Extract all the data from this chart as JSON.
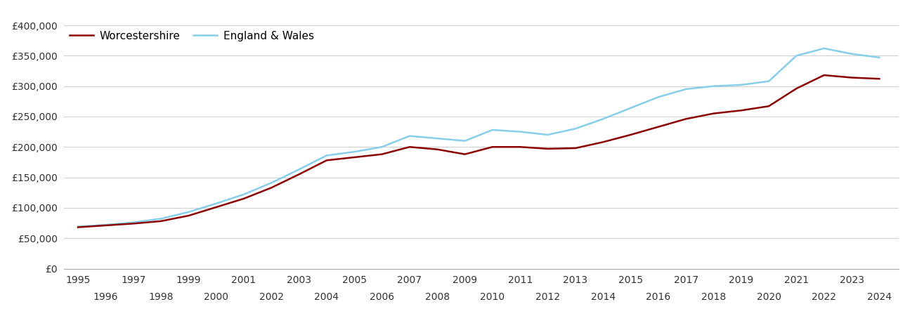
{
  "years": [
    1995,
    1996,
    1997,
    1998,
    1999,
    2000,
    2001,
    2002,
    2003,
    2004,
    2005,
    2006,
    2007,
    2008,
    2009,
    2010,
    2011,
    2012,
    2013,
    2014,
    2015,
    2016,
    2017,
    2018,
    2019,
    2020,
    2021,
    2022,
    2023,
    2024
  ],
  "worcestershire": [
    68000,
    71000,
    74000,
    78000,
    87000,
    101000,
    115000,
    133000,
    155000,
    178000,
    183000,
    188000,
    200000,
    196000,
    188000,
    200000,
    200000,
    197000,
    198000,
    208000,
    220000,
    233000,
    246000,
    255000,
    260000,
    267000,
    296000,
    318000,
    314000,
    312000
  ],
  "england_wales": [
    69000,
    72000,
    76000,
    82000,
    93000,
    107000,
    122000,
    141000,
    163000,
    186000,
    192000,
    200000,
    218000,
    214000,
    210000,
    228000,
    225000,
    220000,
    230000,
    246000,
    264000,
    282000,
    295000,
    300000,
    302000,
    308000,
    350000,
    362000,
    353000,
    347000
  ],
  "worcs_color": "#8B0000",
  "ew_color": "#87CEEB",
  "background_color": "#ffffff",
  "grid_color": "#d0d0d0",
  "ylim": [
    0,
    400000
  ],
  "yticks": [
    0,
    50000,
    100000,
    150000,
    200000,
    250000,
    300000,
    350000,
    400000
  ],
  "legend_labels": [
    "Worcestershire",
    "England & Wales"
  ],
  "worcs_linewidth": 1.8,
  "ew_linewidth": 1.8,
  "xlim": [
    1994.5,
    2024.7
  ]
}
